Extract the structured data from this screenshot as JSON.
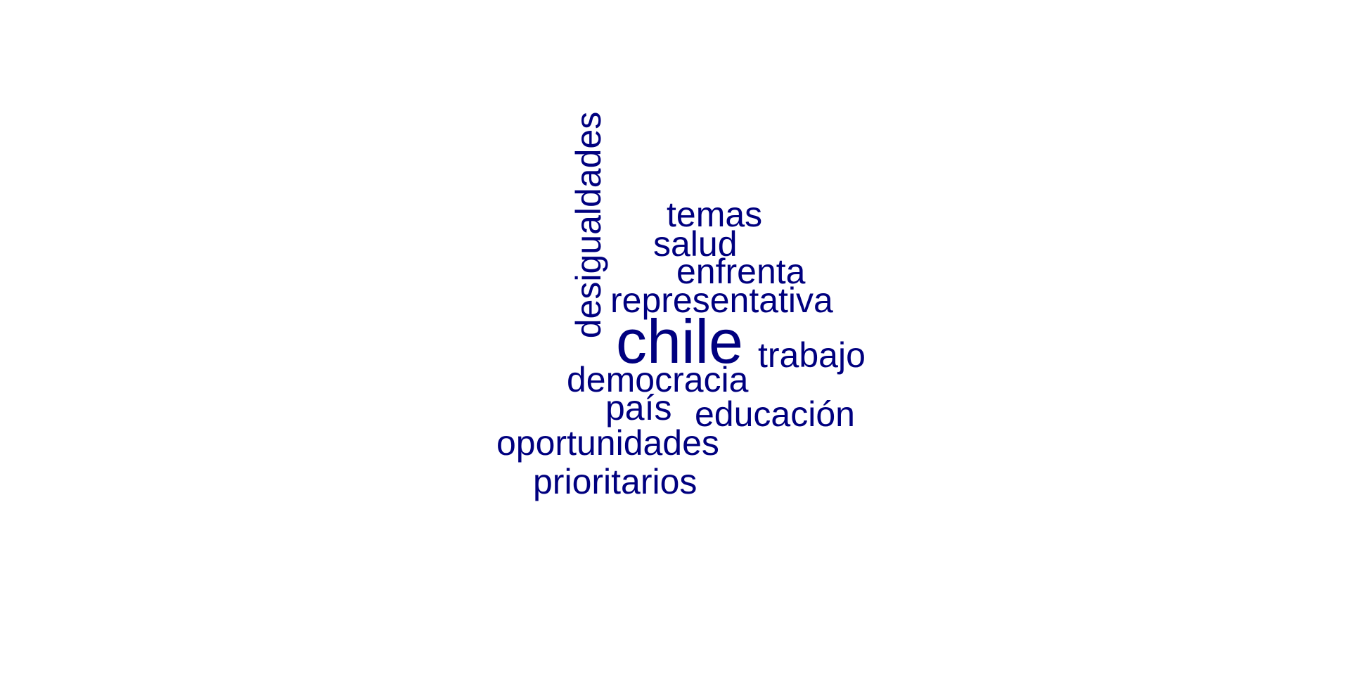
{
  "wordcloud": {
    "color": "#00007f",
    "words": [
      {
        "text": "chile",
        "weight": "largest"
      },
      {
        "text": "desigualdades"
      },
      {
        "text": "temas"
      },
      {
        "text": "salud"
      },
      {
        "text": "enfrenta"
      },
      {
        "text": "representativa"
      },
      {
        "text": "trabajo"
      },
      {
        "text": "democracia"
      },
      {
        "text": "país"
      },
      {
        "text": "educación"
      },
      {
        "text": "oportunidades"
      },
      {
        "text": "prioritarios"
      }
    ]
  }
}
